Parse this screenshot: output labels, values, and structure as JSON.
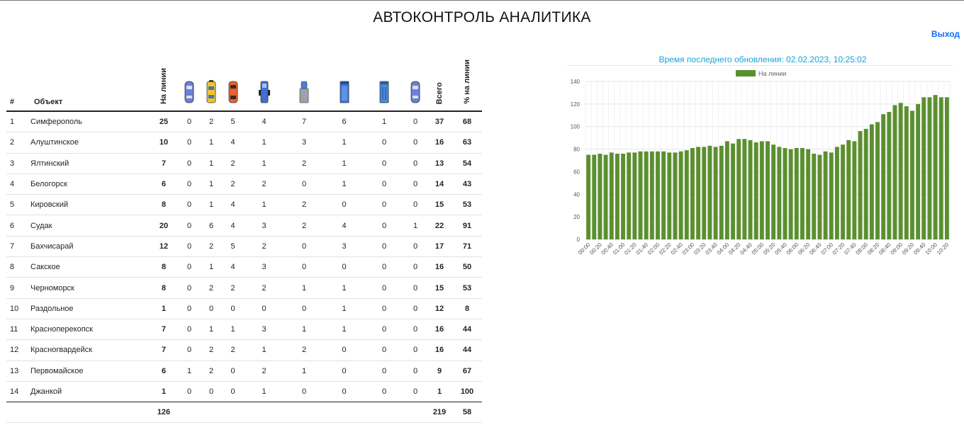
{
  "header": {
    "title": "АВТОКОНТРОЛЬ АНАЛИТИКА",
    "logout": "Выход"
  },
  "table": {
    "col_num": "#",
    "col_object": "Объект",
    "col_on_line": "На линии",
    "col_total": "Всего",
    "col_percent": "% на линии",
    "vehicle_icons": [
      "car-blue-icon",
      "taxi-yellow-icon",
      "car-red-icon",
      "truck-blue-icon",
      "tanker-gray-icon",
      "van-blue-icon",
      "trash-truck-icon",
      "car-blue-2-icon"
    ],
    "vehicle_colors": [
      "#6f7fd6",
      "#f3c42b",
      "#e9622f",
      "#3f6fd0",
      "#9aa3ad",
      "#3d78d8",
      "#4a8bd9",
      "#6f7fd6"
    ],
    "rows": [
      {
        "num": "1",
        "name": "Симферополь",
        "on_line": "25",
        "types": [
          "0",
          "2",
          "5",
          "4",
          "7",
          "6",
          "1",
          "0"
        ],
        "total": "37",
        "percent": "68"
      },
      {
        "num": "2",
        "name": "Алуштинское",
        "on_line": "10",
        "types": [
          "0",
          "1",
          "4",
          "1",
          "3",
          "1",
          "0",
          "0"
        ],
        "total": "16",
        "percent": "63"
      },
      {
        "num": "3",
        "name": "Ялтинский",
        "on_line": "7",
        "types": [
          "0",
          "1",
          "2",
          "1",
          "2",
          "1",
          "0",
          "0"
        ],
        "total": "13",
        "percent": "54"
      },
      {
        "num": "4",
        "name": "Белогорск",
        "on_line": "6",
        "types": [
          "0",
          "1",
          "2",
          "2",
          "0",
          "1",
          "0",
          "0"
        ],
        "total": "14",
        "percent": "43"
      },
      {
        "num": "5",
        "name": "Кировский",
        "on_line": "8",
        "types": [
          "0",
          "1",
          "4",
          "1",
          "2",
          "0",
          "0",
          "0"
        ],
        "total": "15",
        "percent": "53"
      },
      {
        "num": "6",
        "name": "Судак",
        "on_line": "20",
        "types": [
          "0",
          "6",
          "4",
          "3",
          "2",
          "4",
          "0",
          "1"
        ],
        "total": "22",
        "percent": "91"
      },
      {
        "num": "7",
        "name": "Бахчисарай",
        "on_line": "12",
        "types": [
          "0",
          "2",
          "5",
          "2",
          "0",
          "3",
          "0",
          "0"
        ],
        "total": "17",
        "percent": "71"
      },
      {
        "num": "8",
        "name": "Сакское",
        "on_line": "8",
        "types": [
          "0",
          "1",
          "4",
          "3",
          "0",
          "0",
          "0",
          "0"
        ],
        "total": "16",
        "percent": "50"
      },
      {
        "num": "9",
        "name": "Черноморск",
        "on_line": "8",
        "types": [
          "0",
          "2",
          "2",
          "2",
          "1",
          "1",
          "0",
          "0"
        ],
        "total": "15",
        "percent": "53"
      },
      {
        "num": "10",
        "name": "Раздольное",
        "on_line": "1",
        "types": [
          "0",
          "0",
          "0",
          "0",
          "0",
          "1",
          "0",
          "0"
        ],
        "total": "12",
        "percent": "8"
      },
      {
        "num": "11",
        "name": "Красноперекопск",
        "on_line": "7",
        "types": [
          "0",
          "1",
          "1",
          "3",
          "1",
          "1",
          "0",
          "0"
        ],
        "total": "16",
        "percent": "44"
      },
      {
        "num": "12",
        "name": "Красногвардейск",
        "on_line": "7",
        "types": [
          "0",
          "2",
          "2",
          "1",
          "2",
          "0",
          "0",
          "0"
        ],
        "total": "16",
        "percent": "44"
      },
      {
        "num": "13",
        "name": "Первомайское",
        "on_line": "6",
        "types": [
          "1",
          "2",
          "0",
          "2",
          "1",
          "0",
          "0",
          "0"
        ],
        "total": "9",
        "percent": "67"
      },
      {
        "num": "14",
        "name": "Джанкой",
        "on_line": "1",
        "types": [
          "0",
          "0",
          "0",
          "1",
          "0",
          "0",
          "0",
          "0"
        ],
        "total": "1",
        "percent": "100"
      }
    ],
    "totals": {
      "on_line": "126",
      "total": "219",
      "percent": "58"
    }
  },
  "update_label": "Время последнего обновления: 02.02.2023, 10:25:02",
  "chart_data": {
    "type": "bar",
    "legend": "На линии",
    "color": "#5b8f2f",
    "ylim": [
      0,
      140
    ],
    "yticks": [
      0,
      20,
      40,
      60,
      80,
      100,
      120,
      140
    ],
    "x": [
      "00:00",
      "00:10",
      "00:20",
      "00:30",
      "00:40",
      "00:50",
      "01:00",
      "01:10",
      "01:20",
      "01:30",
      "01:40",
      "01:50",
      "02:00",
      "02:10",
      "02:20",
      "02:30",
      "02:40",
      "02:50",
      "03:00",
      "03:10",
      "03:20",
      "03:30",
      "03:40",
      "03:50",
      "04:00",
      "04:10",
      "04:20",
      "04:30",
      "04:40",
      "04:50",
      "05:00",
      "05:10",
      "05:20",
      "05:30",
      "05:40",
      "05:50",
      "06:00",
      "06:10",
      "06:20",
      "06:30",
      "06:40",
      "06:50",
      "07:00",
      "07:10",
      "07:20",
      "07:30",
      "07:40",
      "07:50",
      "08:00",
      "08:10",
      "08:20",
      "08:30",
      "08:40",
      "08:50",
      "09:00",
      "09:10",
      "09:20",
      "09:30",
      "09:40",
      "09:50",
      "10:00",
      "10:10",
      "10:20"
    ],
    "values": [
      75,
      75,
      76,
      75,
      77,
      76,
      76,
      77,
      77,
      78,
      78,
      78,
      78,
      78,
      77,
      77,
      78,
      79,
      81,
      82,
      82,
      83,
      82,
      83,
      87,
      85,
      89,
      89,
      88,
      86,
      87,
      87,
      84,
      82,
      81,
      80,
      81,
      81,
      80,
      76,
      75,
      78,
      77,
      82,
      84,
      88,
      87,
      96,
      98,
      102,
      104,
      111,
      113,
      119,
      121,
      118,
      114,
      120,
      126,
      126,
      128,
      126,
      126
    ],
    "xticks_shown": [
      "00:00",
      "00:20",
      "00:40",
      "01:00",
      "01:20",
      "01:40",
      "02:00",
      "02:20",
      "02:40",
      "03:00",
      "03:20",
      "03:40",
      "04:00",
      "04:20",
      "04:40",
      "05:00",
      "05:20",
      "05:40",
      "06:00",
      "06:20",
      "06:40",
      "07:00",
      "07:20",
      "07:40",
      "08:00",
      "08:20",
      "08:40",
      "09:00",
      "09:20",
      "09:40",
      "10:00",
      "10:20"
    ]
  }
}
